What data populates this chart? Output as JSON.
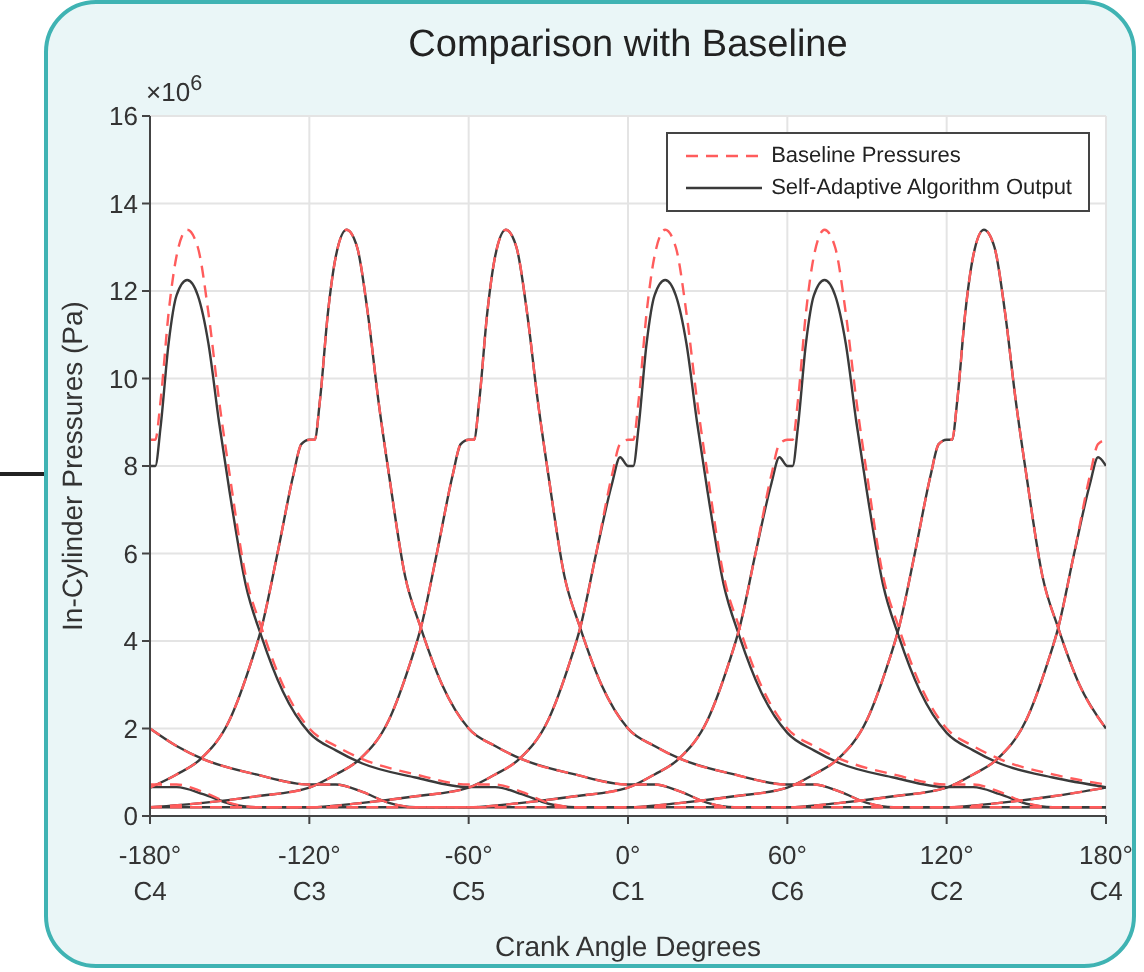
{
  "chart_data": {
    "type": "line",
    "title": "Comparison with Baseline",
    "xlabel": "Crank Angle Degrees",
    "ylabel": "In-Cylinder Pressures (Pa)",
    "annotations": [
      "×10$^{6}$",
      "C4",
      "C3",
      "C5",
      "C1",
      "C6",
      "C2",
      "C4"
    ],
    "xlim": [
      -180,
      180
    ],
    "xticks": [
      {
        "value": -180,
        "label": "-180°"
      },
      {
        "value": -120,
        "label": "-120°"
      },
      {
        "value": -60,
        "label": "-60°"
      },
      {
        "value": 0,
        "label": "0°"
      },
      {
        "value": 60,
        "label": "60°"
      },
      {
        "value": 120,
        "label": "120°"
      },
      {
        "value": 180,
        "label": "180°"
      }
    ],
    "ylim": [
      0,
      16
    ],
    "yticks": [
      0,
      2,
      4,
      6,
      8,
      10,
      12,
      14,
      16
    ],
    "grid": true,
    "legend": "top right",
    "series": [
      {
        "name": "Baseline Pressures",
        "color": "#ff5c5c",
        "line_style": "dashed",
        "x": [
          -180,
          -178,
          -176,
          -173,
          -170,
          -166,
          -162,
          -158,
          -154,
          -150,
          -144,
          -138,
          -130,
          -120,
          -110,
          -100,
          -80,
          -60,
          -50,
          -40,
          -30,
          -20,
          0,
          60,
          80,
          100,
          120,
          130,
          139,
          150,
          158,
          162,
          168,
          174,
          177,
          180
        ],
        "values": [
          8.6,
          8.6,
          9.5,
          11.5,
          12.8,
          13.4,
          13.0,
          11.5,
          9.5,
          7.8,
          5.5,
          4.3,
          3.0,
          2.0,
          1.6,
          1.3,
          0.95,
          0.72,
          0.72,
          0.55,
          0.3,
          0.2,
          0.2,
          0.2,
          0.3,
          0.45,
          0.65,
          0.95,
          1.3,
          2.2,
          3.5,
          4.3,
          6.0,
          7.8,
          8.5,
          8.6
        ]
      },
      {
        "color": "#ff5c5c",
        "line_style": "dashed",
        "x": [
          -180,
          -170,
          -161,
          -150,
          -142,
          -138,
          -132,
          -126,
          -123,
          -120,
          -118,
          -116,
          -113,
          -110,
          -106,
          -102,
          -98,
          -94,
          -90,
          -84,
          -78,
          -70,
          -60,
          -50,
          -40,
          -20,
          0,
          10,
          20,
          30,
          40,
          60,
          120,
          140,
          160,
          180
        ],
        "values": [
          0.65,
          0.95,
          1.3,
          2.2,
          3.5,
          4.3,
          6.0,
          7.8,
          8.5,
          8.6,
          8.6,
          9.5,
          11.5,
          12.8,
          13.4,
          13.0,
          11.5,
          9.5,
          7.8,
          5.5,
          4.3,
          3.0,
          2.0,
          1.6,
          1.3,
          0.95,
          0.72,
          0.72,
          0.55,
          0.3,
          0.2,
          0.2,
          0.2,
          0.3,
          0.45,
          0.65
        ]
      },
      {
        "color": "#ff5c5c",
        "line_style": "dashed",
        "x": [
          -180,
          -160,
          -140,
          -120,
          -110,
          -101,
          -90,
          -82,
          -78,
          -72,
          -66,
          -63,
          -60,
          -58,
          -56,
          -53,
          -50,
          -46,
          -42,
          -38,
          -34,
          -30,
          -24,
          -18,
          -10,
          0,
          10,
          20,
          40,
          60,
          70,
          80,
          90,
          100,
          120,
          180
        ],
        "values": [
          0.2,
          0.3,
          0.45,
          0.65,
          0.95,
          1.3,
          2.2,
          3.5,
          4.3,
          6.0,
          7.8,
          8.5,
          8.6,
          8.6,
          9.5,
          11.5,
          12.8,
          13.4,
          13.0,
          11.5,
          9.5,
          7.8,
          5.5,
          4.3,
          3.0,
          2.0,
          1.6,
          1.3,
          0.95,
          0.72,
          0.72,
          0.55,
          0.3,
          0.2,
          0.2,
          0.2
        ]
      },
      {
        "color": "#ff5c5c",
        "line_style": "dashed",
        "x": [
          -180,
          -120,
          -100,
          -80,
          -60,
          -50,
          -41,
          -30,
          -22,
          -18,
          -12,
          -6,
          -3,
          0,
          2,
          4,
          7,
          10,
          14,
          18,
          22,
          26,
          30,
          36,
          42,
          50,
          60,
          70,
          80,
          100,
          120,
          130,
          140,
          150,
          160,
          180
        ],
        "values": [
          0.2,
          0.2,
          0.3,
          0.45,
          0.65,
          0.95,
          1.3,
          2.2,
          3.5,
          4.3,
          6.0,
          7.8,
          8.5,
          8.6,
          8.6,
          9.5,
          11.5,
          12.8,
          13.4,
          13.0,
          11.5,
          9.5,
          7.8,
          5.5,
          4.3,
          3.0,
          2.0,
          1.6,
          1.3,
          0.95,
          0.72,
          0.72,
          0.55,
          0.3,
          0.2,
          0.2
        ]
      },
      {
        "color": "#ff5c5c",
        "line_style": "dashed",
        "x": [
          -180,
          -170,
          -160,
          -150,
          -140,
          -120,
          -60,
          -40,
          -20,
          0,
          10,
          19,
          30,
          38,
          42,
          48,
          54,
          57,
          60,
          62,
          64,
          67,
          70,
          74,
          78,
          82,
          86,
          90,
          96,
          102,
          110,
          120,
          130,
          140,
          160,
          180
        ],
        "values": [
          0.72,
          0.72,
          0.55,
          0.3,
          0.2,
          0.2,
          0.2,
          0.3,
          0.45,
          0.65,
          0.95,
          1.3,
          2.2,
          3.5,
          4.3,
          6.0,
          7.8,
          8.5,
          8.6,
          8.6,
          9.5,
          11.5,
          12.8,
          13.4,
          13.0,
          11.5,
          9.5,
          7.8,
          5.5,
          4.3,
          3.0,
          2.0,
          1.6,
          1.3,
          0.95,
          0.72
        ]
      },
      {
        "color": "#ff5c5c",
        "line_style": "dashed",
        "x": [
          -180,
          -170,
          -160,
          -140,
          -120,
          -110,
          -100,
          -90,
          -80,
          -60,
          0,
          20,
          40,
          60,
          70,
          79,
          90,
          98,
          102,
          108,
          114,
          117,
          120,
          122,
          124,
          127,
          130,
          134,
          138,
          142,
          146,
          150,
          156,
          162,
          170,
          180
        ],
        "values": [
          2.0,
          1.6,
          1.3,
          0.95,
          0.72,
          0.72,
          0.55,
          0.3,
          0.2,
          0.2,
          0.2,
          0.3,
          0.45,
          0.65,
          0.95,
          1.3,
          2.2,
          3.5,
          4.3,
          6.0,
          7.8,
          8.5,
          8.6,
          8.6,
          9.5,
          11.5,
          12.8,
          13.4,
          13.0,
          11.5,
          9.5,
          7.8,
          5.5,
          4.3,
          3.0,
          2.0
        ]
      },
      {
        "name": "Self-Adaptive Algorithm Output",
        "color": "#3a3a3a",
        "line_style": "solid",
        "x": [
          -180,
          -178,
          -176,
          -173,
          -170,
          -166,
          -162,
          -158,
          -154,
          -150,
          -144,
          -138,
          -130,
          -120,
          -110,
          -100,
          -80,
          -60,
          -50,
          -40,
          -30,
          -20,
          0,
          60,
          80,
          100,
          120,
          130,
          139,
          150,
          158,
          162,
          168,
          174,
          177,
          180
        ],
        "values": [
          8.0,
          8.0,
          8.9,
          10.8,
          11.9,
          12.25,
          11.9,
          10.8,
          9.0,
          7.4,
          5.3,
          4.1,
          2.85,
          1.9,
          1.5,
          1.2,
          0.88,
          0.66,
          0.66,
          0.5,
          0.28,
          0.2,
          0.2,
          0.2,
          0.3,
          0.45,
          0.65,
          0.95,
          1.3,
          2.2,
          3.5,
          4.3,
          6.0,
          7.6,
          8.2,
          8.0
        ]
      },
      {
        "color": "#3a3a3a",
        "line_style": "solid",
        "x": [
          -180,
          -170,
          -161,
          -150,
          -142,
          -138,
          -132,
          -126,
          -123,
          -120,
          -118,
          -116,
          -113,
          -110,
          -106,
          -102,
          -98,
          -94,
          -90,
          -84,
          -78,
          -70,
          -60,
          -50,
          -40,
          -20,
          0,
          10,
          20,
          30,
          40,
          60,
          120,
          140,
          160,
          180
        ],
        "values": [
          0.65,
          0.95,
          1.3,
          2.2,
          3.5,
          4.3,
          6.0,
          7.8,
          8.5,
          8.6,
          8.6,
          9.5,
          11.5,
          12.8,
          13.4,
          13.0,
          11.5,
          9.5,
          7.8,
          5.5,
          4.3,
          3.0,
          2.0,
          1.6,
          1.3,
          0.95,
          0.72,
          0.72,
          0.55,
          0.3,
          0.2,
          0.2,
          0.2,
          0.3,
          0.45,
          0.65
        ]
      },
      {
        "color": "#3a3a3a",
        "line_style": "solid",
        "x": [
          -180,
          -160,
          -140,
          -120,
          -110,
          -101,
          -90,
          -82,
          -78,
          -72,
          -66,
          -63,
          -60,
          -58,
          -56,
          -53,
          -50,
          -46,
          -42,
          -38,
          -34,
          -30,
          -24,
          -18,
          -10,
          0,
          10,
          20,
          40,
          60,
          70,
          80,
          90,
          100,
          120,
          180
        ],
        "values": [
          0.2,
          0.3,
          0.45,
          0.65,
          0.95,
          1.3,
          2.2,
          3.5,
          4.3,
          6.0,
          7.8,
          8.5,
          8.6,
          8.6,
          9.5,
          11.5,
          12.8,
          13.4,
          13.0,
          11.5,
          9.5,
          7.8,
          5.5,
          4.3,
          3.0,
          2.0,
          1.6,
          1.3,
          0.95,
          0.72,
          0.72,
          0.55,
          0.3,
          0.2,
          0.2,
          0.2
        ]
      },
      {
        "color": "#3a3a3a",
        "line_style": "solid",
        "x": [
          -180,
          -120,
          -100,
          -80,
          -60,
          -50,
          -41,
          -30,
          -22,
          -18,
          -12,
          -6,
          -3,
          0,
          2,
          4,
          7,
          10,
          14,
          18,
          22,
          26,
          30,
          36,
          42,
          50,
          60,
          70,
          80,
          100,
          120,
          130,
          140,
          150,
          160,
          180
        ],
        "values": [
          0.2,
          0.2,
          0.3,
          0.45,
          0.65,
          0.95,
          1.3,
          2.2,
          3.5,
          4.3,
          6.0,
          7.6,
          8.2,
          8.0,
          8.0,
          8.9,
          10.8,
          11.9,
          12.25,
          11.9,
          10.8,
          9.0,
          7.4,
          5.3,
          4.1,
          2.85,
          1.9,
          1.5,
          1.2,
          0.88,
          0.66,
          0.66,
          0.5,
          0.28,
          0.2,
          0.2
        ]
      },
      {
        "color": "#3a3a3a",
        "line_style": "solid",
        "x": [
          -180,
          -170,
          -160,
          -150,
          -140,
          -120,
          -60,
          -40,
          -20,
          0,
          10,
          19,
          30,
          38,
          42,
          48,
          54,
          57,
          60,
          62,
          64,
          67,
          70,
          74,
          78,
          82,
          86,
          90,
          96,
          102,
          110,
          120,
          130,
          140,
          160,
          180
        ],
        "values": [
          0.66,
          0.66,
          0.5,
          0.28,
          0.2,
          0.2,
          0.2,
          0.3,
          0.45,
          0.65,
          0.95,
          1.3,
          2.2,
          3.5,
          4.3,
          6.0,
          7.6,
          8.2,
          8.0,
          8.0,
          8.9,
          10.8,
          11.9,
          12.25,
          11.9,
          10.8,
          9.0,
          7.4,
          5.3,
          4.1,
          2.85,
          1.9,
          1.5,
          1.2,
          0.88,
          0.66
        ]
      },
      {
        "color": "#3a3a3a",
        "line_style": "solid",
        "x": [
          -180,
          -170,
          -160,
          -140,
          -120,
          -110,
          -100,
          -90,
          -80,
          -60,
          0,
          20,
          40,
          60,
          70,
          79,
          90,
          98,
          102,
          108,
          114,
          117,
          120,
          122,
          124,
          127,
          130,
          134,
          138,
          142,
          146,
          150,
          156,
          162,
          170,
          180
        ],
        "values": [
          2.0,
          1.6,
          1.3,
          0.95,
          0.72,
          0.72,
          0.55,
          0.3,
          0.2,
          0.2,
          0.2,
          0.3,
          0.45,
          0.65,
          0.95,
          1.3,
          2.2,
          3.5,
          4.3,
          6.0,
          7.8,
          8.5,
          8.6,
          8.6,
          9.5,
          11.5,
          12.8,
          13.4,
          13.0,
          11.5,
          9.5,
          7.8,
          5.5,
          4.3,
          3.0,
          2.0
        ]
      }
    ]
  }
}
